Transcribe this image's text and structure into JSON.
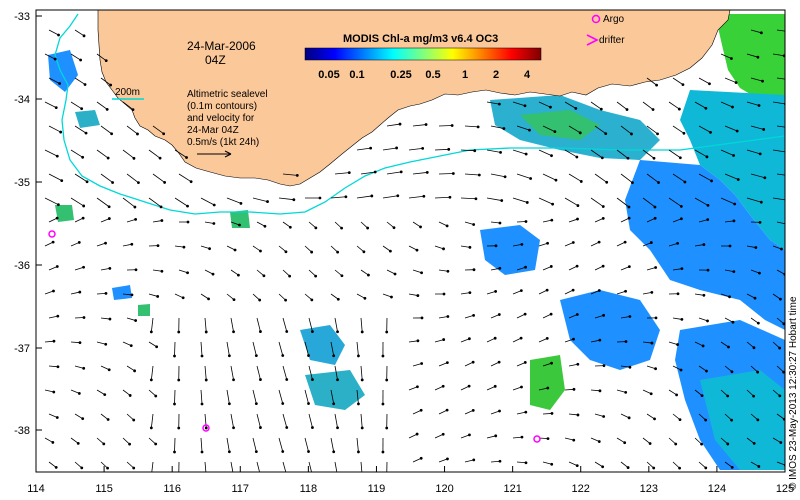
{
  "map": {
    "date_label": "24-Mar-2006",
    "time_label": "04Z",
    "colorbar_title": "MODIS Chl-a mg/m3 v6.4 OC3",
    "colorbar_ticks": [
      "0.05",
      "0.1",
      "0.25",
      "0.5",
      "1",
      "2",
      "4"
    ],
    "colorbar_colors": [
      "#00007f",
      "#0000ff",
      "#007fff",
      "#00ffff",
      "#7fff7f",
      "#ffff00",
      "#ff7f00",
      "#ff0000",
      "#7f0000"
    ],
    "legend_argo": "Argo",
    "legend_drifter": "drifter",
    "isobath_label": "200m",
    "sealevel_note": [
      "Altimetric sealevel",
      "(0.1m contours)",
      "and velocity for",
      "24-Mar 04Z",
      "0.5m/s (1kt 24h)"
    ],
    "credit": "© IMOS 23-May-2013 12:30:27 Hobart time",
    "x_ticks": [
      "114",
      "115",
      "116",
      "117",
      "118",
      "119",
      "120",
      "121",
      "122",
      "123",
      "124",
      "125"
    ],
    "y_ticks": [
      "-33",
      "-34",
      "-35",
      "-36",
      "-37",
      "-38"
    ],
    "colors": {
      "land": "#fbc89a",
      "isobath": "#00d8d8",
      "argo": "#ff00ff",
      "chl_low": "#1e90ff",
      "chl_mid": "#00c8c8",
      "chl_high": "#22cc22"
    }
  }
}
